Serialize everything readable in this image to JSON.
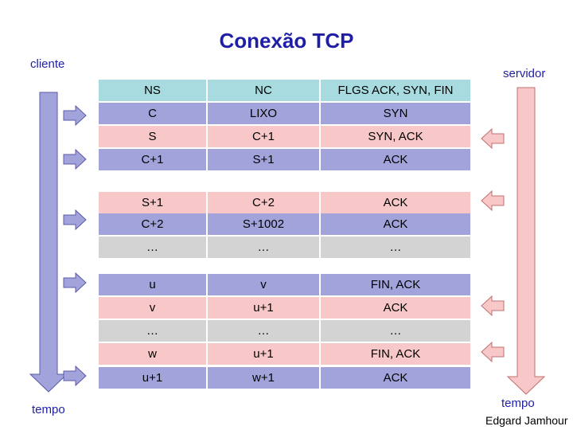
{
  "title": "Conexão TCP",
  "labels": {
    "cliente": "cliente",
    "servidor": "servidor",
    "tempo_left": "tempo",
    "tempo_right": "tempo",
    "credit": "Edgard Jamhour"
  },
  "colors": {
    "title": "#1f1fa6",
    "header_row": "#a8dbe0",
    "client_row": "#a3a3dc",
    "server_row": "#f8c8c8",
    "ellipsis_row": "#d3d3d3"
  },
  "table": {
    "header": [
      "NS",
      "NC",
      "FLGS ACK, SYN, FIN"
    ],
    "rows": [
      {
        "cells": [
          "C",
          "LIXO",
          "SYN"
        ],
        "from": "cliente"
      },
      {
        "cells": [
          "S",
          "C+1",
          "SYN, ACK"
        ],
        "from": "servidor"
      },
      {
        "cells": [
          "C+1",
          "S+1",
          "ACK"
        ],
        "from": "cliente"
      },
      {
        "cells": [
          "S+1",
          "C+2",
          "ACK"
        ],
        "from": "servidor"
      },
      {
        "cells": [
          "C+2",
          "S+1002",
          "ACK"
        ],
        "from": "cliente"
      },
      {
        "cells": [
          "…",
          "…",
          "…"
        ],
        "from": "none"
      },
      {
        "cells": [
          "u",
          "v",
          "FIN, ACK"
        ],
        "from": "cliente"
      },
      {
        "cells": [
          "v",
          "u+1",
          "ACK"
        ],
        "from": "servidor"
      },
      {
        "cells": [
          "…",
          "…",
          "…"
        ],
        "from": "none"
      },
      {
        "cells": [
          "w",
          "u+1",
          "FIN, ACK"
        ],
        "from": "servidor"
      },
      {
        "cells": [
          "u+1",
          "w+1",
          "ACK"
        ],
        "from": "cliente"
      }
    ]
  }
}
